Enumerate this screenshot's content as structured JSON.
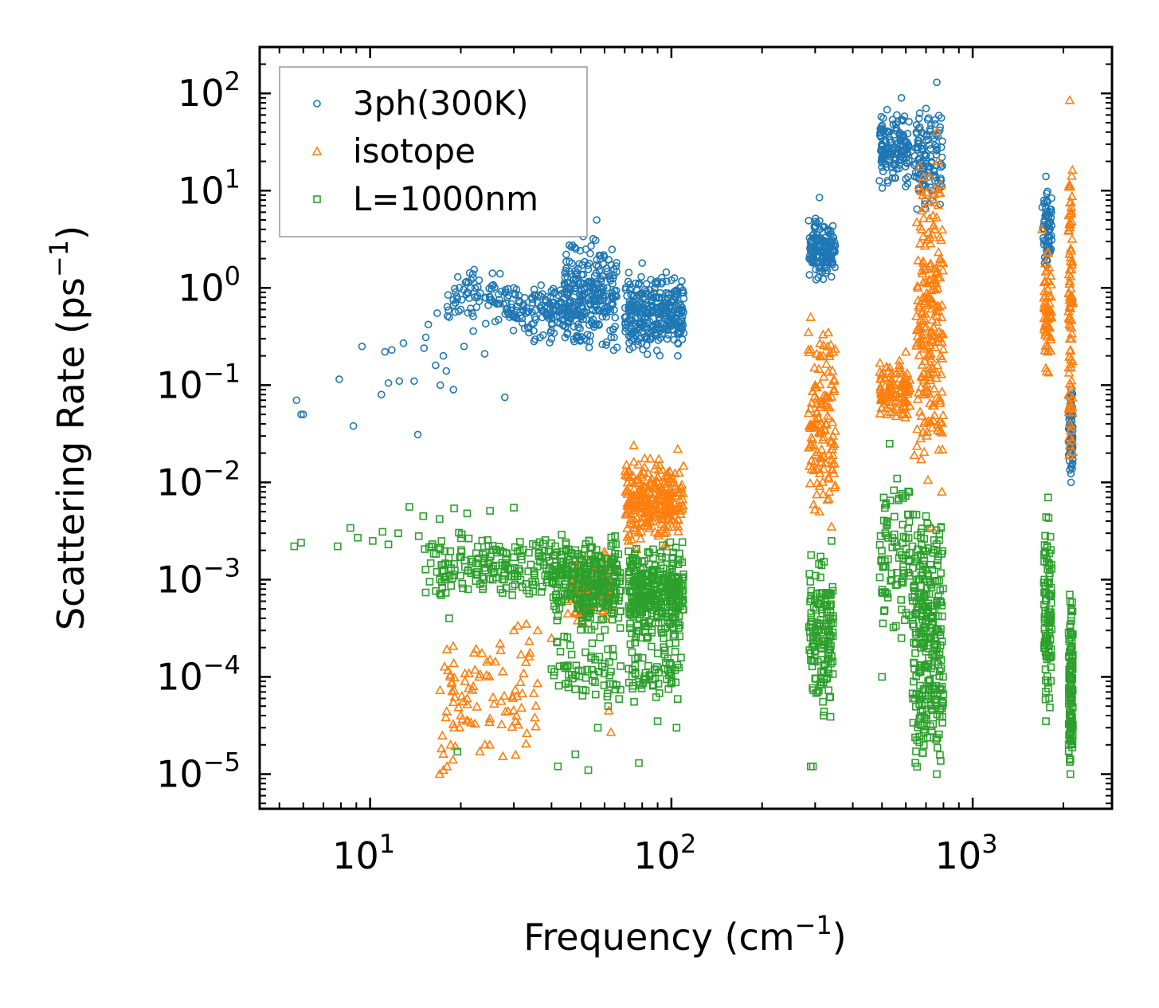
{
  "chart_data": {
    "type": "scatter",
    "title": "",
    "xlabel": "Frequency (cm",
    "xlabel_sup": "−1",
    "xlabel_tail": ")",
    "ylabel": "Scattering Rate (ps",
    "ylabel_sup": "−1",
    "ylabel_tail": ")",
    "xscale": "log",
    "yscale": "log",
    "xlim": [
      4.3,
      2900
    ],
    "ylim": [
      4.4e-06,
      300
    ],
    "x_ticks": [
      {
        "value": 10,
        "base": "10",
        "exp": "1"
      },
      {
        "value": 100,
        "base": "10",
        "exp": "2"
      },
      {
        "value": 1000,
        "base": "10",
        "exp": "3"
      }
    ],
    "y_ticks": [
      {
        "value": 1e-05,
        "base": "10",
        "exp": "−5"
      },
      {
        "value": 0.0001,
        "base": "10",
        "exp": "−4"
      },
      {
        "value": 0.001,
        "base": "10",
        "exp": "−3"
      },
      {
        "value": 0.01,
        "base": "10",
        "exp": "−2"
      },
      {
        "value": 0.1,
        "base": "10",
        "exp": "−1"
      },
      {
        "value": 1,
        "base": "10",
        "exp": "0"
      },
      {
        "value": 10,
        "base": "10",
        "exp": "1"
      },
      {
        "value": 100,
        "base": "10",
        "exp": "2"
      }
    ],
    "legend_position": "top-left",
    "series": [
      {
        "name": "3ph(300K)",
        "marker": "circle",
        "color": "#1f77b4",
        "points": [
          [
            5.7,
            0.07
          ],
          [
            5.9,
            0.05
          ],
          [
            6.0,
            0.05
          ],
          [
            7.9,
            0.115
          ],
          [
            8.8,
            0.038
          ],
          [
            9.4,
            0.25
          ],
          [
            10.9,
            0.08
          ],
          [
            11.2,
            0.22
          ],
          [
            11.5,
            0.105
          ],
          [
            11.8,
            0.23
          ],
          [
            12.5,
            0.11
          ],
          [
            12.9,
            0.27
          ],
          [
            14.0,
            0.11
          ],
          [
            14.4,
            0.031
          ],
          [
            15.1,
            0.24
          ],
          [
            15.3,
            0.31
          ],
          [
            15.6,
            0.42
          ],
          [
            16.5,
            0.16
          ],
          [
            16.7,
            0.55
          ],
          [
            17.1,
            0.1
          ],
          [
            17.5,
            0.2
          ],
          [
            17.9,
            0.14
          ],
          [
            18.3,
            0.5
          ],
          [
            18.9,
            0.09
          ],
          [
            19.2,
            0.7
          ],
          [
            20.0,
            0.6
          ],
          [
            20.5,
            0.25
          ],
          [
            21.0,
            0.9
          ],
          [
            22.0,
            0.36
          ],
          [
            23.0,
            1.2
          ],
          [
            24.0,
            0.21
          ],
          [
            25.0,
            0.8
          ],
          [
            26.0,
            0.45
          ],
          [
            27.0,
            1.4
          ],
          [
            28.0,
            0.075
          ],
          [
            29.0,
            0.5
          ],
          [
            30.0,
            1.0
          ],
          [
            33.0,
            0.55
          ],
          [
            36.0,
            0.7
          ],
          [
            40.0,
            0.3
          ],
          [
            45.0,
            0.5
          ],
          [
            48.0,
            1.5
          ],
          [
            52.0,
            2.5
          ],
          [
            55.0,
            3.2
          ],
          [
            56.5,
            5.0
          ],
          [
            58.0,
            1.0
          ],
          [
            62.0,
            0.6
          ],
          [
            70.0,
            0.5
          ],
          [
            80.0,
            1.8
          ],
          [
            90.0,
            0.6
          ],
          [
            100.0,
            1.2
          ],
          [
            105.0,
            0.2
          ],
          [
            300.0,
            2.5
          ],
          [
            310.0,
            8.5
          ],
          [
            330.0,
            4.0
          ],
          [
            500.0,
            30.0
          ],
          [
            560.0,
            60.0
          ],
          [
            580.0,
            90.0
          ],
          [
            650.0,
            40.0
          ],
          [
            700.0,
            70.0
          ],
          [
            760.0,
            130.0
          ],
          [
            780.0,
            45.0
          ],
          [
            1750.0,
            14.0
          ],
          [
            1790.0,
            4.0
          ],
          [
            2100.0,
            0.05
          ],
          [
            2120.0,
            0.01
          ]
        ],
        "clusters": [
          [
            18,
            30,
            0.4,
            1.6,
            70
          ],
          [
            28,
            46,
            0.25,
            1.3,
            130
          ],
          [
            44,
            66,
            0.2,
            3.5,
            260
          ],
          [
            70,
            110,
            0.2,
            1.5,
            320
          ],
          [
            285,
            350,
            1.2,
            5.5,
            160
          ],
          [
            490,
            620,
            10,
            70,
            150
          ],
          [
            640,
            800,
            5,
            80,
            120
          ],
          [
            1700,
            1830,
            1.5,
            11,
            70
          ],
          [
            2080,
            2150,
            0.011,
            0.12,
            70
          ]
        ]
      },
      {
        "name": "isotope",
        "marker": "triangle",
        "color": "#ff7f0e",
        "points": [
          [
            17.0,
            1e-05
          ],
          [
            17.5,
            1.1e-05
          ],
          [
            18.0,
            1.2e-05
          ],
          [
            18.5,
            2e-05
          ],
          [
            19.0,
            3e-05
          ],
          [
            20.0,
            4e-05
          ],
          [
            21.0,
            6e-05
          ],
          [
            22.0,
            8e-05
          ],
          [
            23.0,
            0.0001
          ],
          [
            25.0,
            0.00015
          ],
          [
            27.0,
            0.00022
          ],
          [
            30.0,
            0.0003
          ],
          [
            33.0,
            0.00035
          ],
          [
            36.0,
            0.0003
          ],
          [
            40.0,
            0.00025
          ],
          [
            45.0,
            0.0006
          ],
          [
            50.0,
            0.0009
          ],
          [
            55.0,
            0.0013
          ],
          [
            60.0,
            0.0018
          ],
          [
            62.0,
            4.5e-05
          ],
          [
            63.0,
            2.7e-05
          ],
          [
            72.0,
            0.0025
          ],
          [
            75.0,
            0.024
          ],
          [
            80.0,
            0.008
          ],
          [
            85.0,
            0.004
          ],
          [
            95.0,
            0.003
          ],
          [
            105.0,
            0.022
          ],
          [
            290.0,
            0.5
          ],
          [
            300.0,
            0.1
          ],
          [
            310.0,
            0.005
          ],
          [
            330.0,
            0.25
          ],
          [
            340.0,
            0.0035
          ],
          [
            500.0,
            0.13
          ],
          [
            520.0,
            0.05
          ],
          [
            600.0,
            0.22
          ],
          [
            640.0,
            0.019
          ],
          [
            700.0,
            0.4
          ],
          [
            730.0,
            0.0035
          ],
          [
            760.0,
            40.0
          ],
          [
            780.0,
            2.0
          ],
          [
            790.0,
            0.008
          ],
          [
            1700.0,
            4.0
          ],
          [
            1750.0,
            0.15
          ],
          [
            1800.0,
            0.0015
          ],
          [
            2100.0,
            85.0
          ],
          [
            2130.0,
            0.3
          ]
        ],
        "clusters": [
          [
            17,
            36,
            1e-05,
            0.00035,
            90
          ],
          [
            45,
            65,
            0.0003,
            0.002,
            90
          ],
          [
            70,
            110,
            0.002,
            0.02,
            260
          ],
          [
            285,
            350,
            0.004,
            0.45,
            130
          ],
          [
            490,
            620,
            0.04,
            0.2,
            100
          ],
          [
            650,
            800,
            0.01,
            30,
            220
          ],
          [
            1720,
            1830,
            0.1,
            3,
            60
          ],
          [
            2080,
            2150,
            0.01,
            50,
            90
          ]
        ]
      },
      {
        "name": "L=1000nm",
        "marker": "square",
        "color": "#2ca02c",
        "points": [
          [
            5.6,
            0.0022
          ],
          [
            5.9,
            0.0024
          ],
          [
            7.8,
            0.0022
          ],
          [
            8.6,
            0.0034
          ],
          [
            9.1,
            0.0027
          ],
          [
            10.2,
            0.0025
          ],
          [
            11.0,
            0.0031
          ],
          [
            11.5,
            0.0023
          ],
          [
            12.4,
            0.003
          ],
          [
            13.5,
            0.0056
          ],
          [
            14.5,
            0.0028
          ],
          [
            15.0,
            0.0045
          ],
          [
            16.0,
            0.0022
          ],
          [
            17.0,
            0.0042
          ],
          [
            18.3,
            0.0004
          ],
          [
            19.0,
            0.0054
          ],
          [
            19.5,
            1.7e-05
          ],
          [
            21.0,
            0.0048
          ],
          [
            25.0,
            0.0051
          ],
          [
            30.0,
            0.0055
          ],
          [
            40.0,
            0.00012
          ],
          [
            42.0,
            1.2e-05
          ],
          [
            48.0,
            1.6e-05
          ],
          [
            53.0,
            1.1e-05
          ],
          [
            57.0,
            3e-05
          ],
          [
            65.0,
            0.0028
          ],
          [
            78.0,
            1.3e-05
          ],
          [
            90.0,
            3.5e-05
          ],
          [
            104.0,
            3e-05
          ],
          [
            290.0,
            1.2e-05
          ],
          [
            295.0,
            1.2e-05
          ],
          [
            320.0,
            4e-05
          ],
          [
            340.0,
            0.0025
          ],
          [
            500.0,
            0.0001
          ],
          [
            530.0,
            0.025
          ],
          [
            580.0,
            0.00025
          ],
          [
            650.0,
            0.001
          ],
          [
            700.0,
            0.0045
          ],
          [
            760.0,
            1e-05
          ],
          [
            780.0,
            0.0006
          ],
          [
            1750.0,
            3.5e-05
          ],
          [
            1780.0,
            0.007
          ],
          [
            2100.0,
            0.0007
          ],
          [
            2110.0,
            1e-05
          ]
        ],
        "clusters": [
          [
            15,
            40,
            0.0006,
            0.0032,
            180
          ],
          [
            40,
            68,
            0.0003,
            0.003,
            300
          ],
          [
            40,
            68,
            4e-05,
            0.0004,
            70
          ],
          [
            72,
            110,
            0.0002,
            0.0025,
            360
          ],
          [
            72,
            110,
            5e-05,
            0.0002,
            60
          ],
          [
            285,
            345,
            3e-05,
            0.0025,
            150
          ],
          [
            490,
            620,
            0.0002,
            0.015,
            90
          ],
          [
            630,
            800,
            1e-05,
            0.006,
            300
          ],
          [
            1720,
            1830,
            4e-05,
            0.006,
            100
          ],
          [
            2080,
            2150,
            1e-05,
            0.0007,
            120
          ]
        ]
      }
    ]
  }
}
